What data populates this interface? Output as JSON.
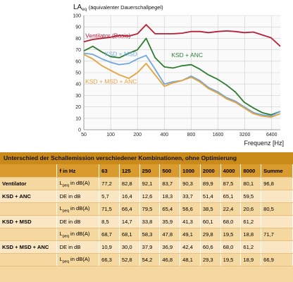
{
  "chart_data": {
    "type": "line",
    "title_main": "LA",
    "title_sub": "eq",
    "title_rest": "(äquivalenter Dauerschallpegel)",
    "xlabel": "Frequenz [Hz]",
    "x_scale": "log",
    "x_ticks": [
      {
        "value": 50,
        "label": "50"
      },
      {
        "value": 100,
        "label": "100"
      },
      {
        "value": 200,
        "label": "200"
      },
      {
        "value": 400,
        "label": "400"
      },
      {
        "value": 800,
        "label": "800"
      },
      {
        "value": 1600,
        "label": "1600"
      },
      {
        "value": 3200,
        "label": "3200"
      },
      {
        "value": 6400,
        "label": "6400"
      }
    ],
    "ylim": [
      0,
      100
    ],
    "y_ticks": [
      0,
      10,
      20,
      30,
      40,
      50,
      60,
      70,
      80,
      90,
      100
    ],
    "grid": true,
    "series": [
      {
        "name": "Ventilator (Basis)",
        "color": "#b5213a",
        "x": [
          50,
          63,
          80,
          100,
          125,
          160,
          200,
          250,
          315,
          400,
          500,
          630,
          800,
          1000,
          1250,
          1600,
          2000,
          2500,
          3150,
          4000,
          5000,
          6300,
          8000
        ],
        "y": [
          77,
          79,
          80,
          81,
          82.5,
          82,
          84,
          92,
          84,
          84,
          84,
          84.5,
          86,
          86,
          85,
          86,
          86.5,
          86,
          85,
          85.5,
          83,
          80.5,
          73
        ]
      },
      {
        "name": "KSD + ANC",
        "color": "#2e7d32",
        "x": [
          50,
          63,
          80,
          100,
          125,
          160,
          200,
          250,
          315,
          400,
          500,
          630,
          800,
          1000,
          1250,
          1600,
          2000,
          2500,
          3150,
          4000,
          5000,
          6300,
          8000
        ],
        "y": [
          69,
          73,
          68,
          64,
          63,
          67,
          70,
          80,
          63,
          55,
          54,
          56,
          57,
          53,
          48,
          44,
          39,
          33,
          24,
          19,
          15,
          13,
          16
        ]
      },
      {
        "name": "KSD + MSD",
        "color": "#6fa8dc",
        "x": [
          50,
          63,
          80,
          100,
          125,
          160,
          200,
          250,
          315,
          400,
          500,
          630,
          800,
          1000,
          1250,
          1600,
          2000,
          2500,
          3150,
          4000,
          5000,
          6300,
          8000
        ],
        "y": [
          67,
          66,
          62,
          59,
          57,
          58,
          62,
          65,
          53,
          40,
          42,
          43,
          47,
          43,
          37,
          33,
          28,
          25,
          20,
          15,
          13,
          12,
          16
        ]
      },
      {
        "name": "KSD + MSD + ANC",
        "color": "#e6a23c",
        "x": [
          50,
          63,
          80,
          100,
          125,
          160,
          200,
          250,
          315,
          400,
          500,
          630,
          800,
          1000,
          1250,
          1600,
          2000,
          2500,
          3150,
          4000,
          5000,
          6300,
          8000
        ],
        "y": [
          66,
          62,
          56,
          52,
          48,
          45,
          50,
          58,
          48,
          38,
          41,
          43,
          46,
          42,
          36,
          32,
          27,
          24,
          19,
          14,
          12,
          11,
          14
        ]
      }
    ]
  },
  "table": {
    "title": "Unterschied der Schallemission verschiedener Kombinationen, ohne Optimierung",
    "headers": [
      "",
      "f in Hz",
      "63",
      "125",
      "250",
      "500",
      "1000",
      "2000",
      "4000",
      "8000",
      "Summe"
    ],
    "rows": [
      {
        "group": "Ventilator",
        "quantity": "L",
        "quantity_sub": "peq",
        "quantity_rest": " in dB(A)",
        "values": [
          "77,2",
          "82,8",
          "92,1",
          "83,7",
          "90,3",
          "89,9",
          "87,5",
          "80,1",
          "96,8"
        ],
        "shade": "a"
      },
      {
        "group": "KSD + ANC",
        "quantity": "DE in dB",
        "quantity_sub": "",
        "quantity_rest": "",
        "values": [
          "5,7",
          "16,4",
          "12,6",
          "18,3",
          "33,7",
          "51,4",
          "65,1",
          "59,5",
          ""
        ],
        "shade": "b"
      },
      {
        "group": "",
        "quantity": "L",
        "quantity_sub": "peq",
        "quantity_rest": " in dB(A)",
        "values": [
          "71,5",
          "66,4",
          "79,5",
          "65,4",
          "56,6",
          "38,5",
          "22,4",
          "20,6",
          "80,5"
        ],
        "shade": "a"
      },
      {
        "group": "KSD + MSD",
        "quantity": "DE in dB",
        "quantity_sub": "",
        "quantity_rest": "",
        "values": [
          "8,5",
          "14,7",
          "33,8",
          "35,9",
          "41,3",
          "60,1",
          "68,0",
          "61,2",
          ""
        ],
        "shade": "b"
      },
      {
        "group": "",
        "quantity": "L",
        "quantity_sub": "peq",
        "quantity_rest": " in dB(A)",
        "values": [
          "68,7",
          "68,1",
          "58,3",
          "47,8",
          "49,1",
          "29,8",
          "19,5",
          "18,8",
          "71,7"
        ],
        "shade": "a"
      },
      {
        "group": "KSD + MSD + ANC",
        "quantity": "DE in dB",
        "quantity_sub": "",
        "quantity_rest": "",
        "values": [
          "10,9",
          "30,0",
          "37,9",
          "36,9",
          "42,4",
          "60,6",
          "68,0",
          "61,2",
          ""
        ],
        "shade": "b"
      },
      {
        "group": "",
        "quantity": "L",
        "quantity_sub": "peq",
        "quantity_rest": " in dB(A)",
        "values": [
          "66,3",
          "52,8",
          "54,2",
          "46,8",
          "48,1",
          "29,3",
          "19,5",
          "18,9",
          "66,9"
        ],
        "shade": "a"
      }
    ]
  }
}
